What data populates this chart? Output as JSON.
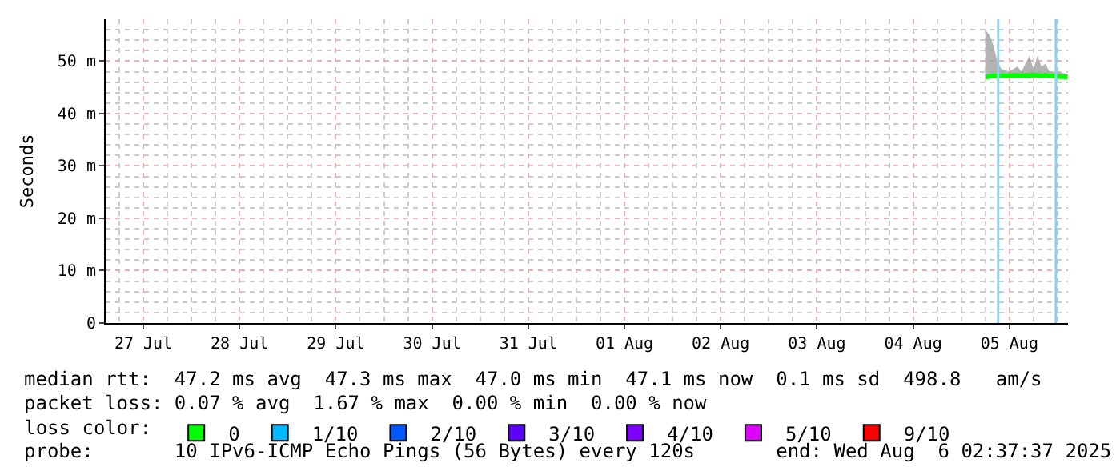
{
  "chart_data": {
    "type": "line",
    "ylabel": "Seconds",
    "legend_title": "loss color:",
    "x": [
      "2025-08-05T06:00",
      "2025-08-05T07:00",
      "2025-08-05T08:00",
      "2025-08-05T09:00",
      "2025-08-05T10:00",
      "2025-08-05T12:00",
      "2025-08-05T14:00",
      "2025-08-05T15:00",
      "2025-08-05T16:00",
      "2025-08-05T17:00",
      "2025-08-05T18:00",
      "2025-08-05T19:00",
      "2025-08-05T20:00",
      "2025-08-05T21:00",
      "2025-08-05T22:00",
      "2025-08-06T00:00",
      "2025-08-06T02:30"
    ],
    "series": [
      {
        "name": "0",
        "color": "#00ff00",
        "values": [
          47.0,
          47.1,
          47.2,
          47.1,
          47.2,
          47.2,
          47.3,
          47.2,
          47.3,
          47.2,
          47.4,
          47.3,
          47.2,
          47.3,
          47.2,
          47.1,
          47.0
        ],
        "lower": [
          46.8,
          46.9,
          46.9,
          46.9,
          47.0,
          47.0,
          47.0,
          47.0,
          47.0,
          47.0,
          47.0,
          47.0,
          47.0,
          47.0,
          47.0,
          46.9,
          46.8
        ],
        "upper": [
          56,
          55,
          53,
          50,
          48.5,
          48,
          49,
          48,
          49.5,
          51,
          48.5,
          51,
          49,
          49.5,
          48,
          48,
          47.5
        ]
      },
      {
        "name": "1/10",
        "color": "#00b8ff",
        "values": [
          null,
          null,
          null,
          null,
          null,
          null,
          null,
          null,
          null,
          null,
          null,
          null,
          null,
          null,
          null,
          null,
          null
        ]
      },
      {
        "name": "2/10",
        "color": "#0059ff",
        "values": [
          null,
          null,
          null,
          null,
          null,
          null,
          null,
          null,
          null,
          null,
          null,
          null,
          null,
          null,
          null,
          null,
          null
        ]
      },
      {
        "name": "3/10",
        "color": "#5e00ff",
        "values": [
          null,
          null,
          null,
          null,
          null,
          null,
          null,
          null,
          null,
          null,
          null,
          null,
          null,
          null,
          null,
          null,
          null
        ]
      },
      {
        "name": "4/10",
        "color": "#7e00ff",
        "values": [
          null,
          null,
          null,
          null,
          null,
          null,
          null,
          null,
          null,
          null,
          null,
          null,
          null,
          null,
          null,
          null,
          null
        ]
      },
      {
        "name": "5/10",
        "color": "#dd00ff",
        "values": [
          null,
          null,
          null,
          null,
          null,
          null,
          null,
          null,
          null,
          null,
          null,
          null,
          null,
          null,
          null,
          null,
          null
        ]
      },
      {
        "name": "9/10",
        "color": "#ff0000",
        "values": [
          null,
          null,
          null,
          null,
          null,
          null,
          null,
          null,
          null,
          null,
          null,
          null,
          null,
          null,
          null,
          null,
          null
        ]
      }
    ],
    "xlim": [
      "2025-07-27T02:37",
      "2025-08-06T02:37"
    ],
    "xticks": [
      {
        "value": "2025-07-27T12:00",
        "label": "27 Jul"
      },
      {
        "value": "2025-07-28T12:00",
        "label": "28 Jul"
      },
      {
        "value": "2025-07-29T12:00",
        "label": "29 Jul"
      },
      {
        "value": "2025-07-30T12:00",
        "label": "30 Jul"
      },
      {
        "value": "2025-07-31T12:00",
        "label": "31 Jul"
      },
      {
        "value": "2025-08-01T12:00",
        "label": "01 Aug"
      },
      {
        "value": "2025-08-02T12:00",
        "label": "02 Aug"
      },
      {
        "value": "2025-08-03T12:00",
        "label": "03 Aug"
      },
      {
        "value": "2025-08-04T12:00",
        "label": "04 Aug"
      },
      {
        "value": "2025-08-05T12:00",
        "label": "05 Aug"
      }
    ],
    "ylim": [
      0,
      58
    ],
    "yticks": [
      {
        "value": 0,
        "label": "0"
      },
      {
        "value": 10,
        "label": "10 m"
      },
      {
        "value": 20,
        "label": "20 m"
      },
      {
        "value": 30,
        "label": "30 m"
      },
      {
        "value": 40,
        "label": "40 m"
      },
      {
        "value": 50,
        "label": "50 m"
      }
    ],
    "ref_lines": [
      {
        "axis": "x",
        "value": "2025-08-05T09:12",
        "color": "#87d3f8"
      },
      {
        "axis": "x",
        "value": "2025-08-05T23:36",
        "color": "#87d3f8"
      }
    ],
    "grid": true,
    "legend": "bottom",
    "annotations": [
      "median rtt:  47.2 ms avg  47.3 ms max  47.0 ms min  47.1 ms now  0.1 ms sd  498.8   am/s",
      "packet loss: 0.07 % avg  1.67 % max  0.00 % min  0.00 % now",
      "probe:       10 IPv6-ICMP Echo Pings (56 Bytes) every 120s       end: Wed Aug  6 02:37:37 2025"
    ]
  }
}
